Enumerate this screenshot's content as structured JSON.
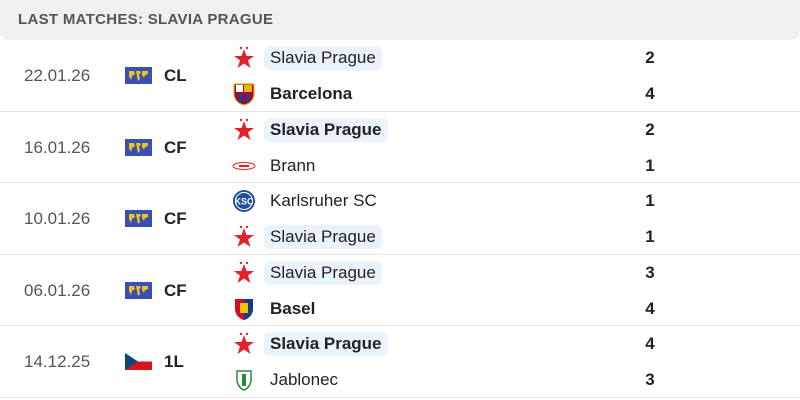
{
  "header": {
    "title": "LAST MATCHES: SLAVIA PRAGUE"
  },
  "colors": {
    "highlight": "#eaf2fc",
    "slavia_red": "#e4202a"
  },
  "matches": [
    {
      "date": "22.01.26",
      "competition": "CL",
      "comp_icon": "world-map-icon",
      "home": {
        "name": "Slavia Prague",
        "logo": "slavia-star",
        "highlight": true,
        "winner": false,
        "score": "2"
      },
      "away": {
        "name": "Barcelona",
        "logo": "barcelona",
        "highlight": false,
        "winner": true,
        "score": "4"
      }
    },
    {
      "date": "16.01.26",
      "competition": "CF",
      "comp_icon": "world-map-icon",
      "home": {
        "name": "Slavia Prague",
        "logo": "slavia-star",
        "highlight": true,
        "winner": true,
        "score": "2"
      },
      "away": {
        "name": "Brann",
        "logo": "brann",
        "highlight": false,
        "winner": false,
        "score": "1"
      }
    },
    {
      "date": "10.01.26",
      "competition": "CF",
      "comp_icon": "world-map-icon",
      "home": {
        "name": "Karlsruher SC",
        "logo": "ksc",
        "highlight": false,
        "winner": false,
        "score": "1"
      },
      "away": {
        "name": "Slavia Prague",
        "logo": "slavia-star",
        "highlight": true,
        "winner": false,
        "score": "1"
      }
    },
    {
      "date": "06.01.26",
      "competition": "CF",
      "comp_icon": "world-map-icon",
      "home": {
        "name": "Slavia Prague",
        "logo": "slavia-star",
        "highlight": true,
        "winner": false,
        "score": "3"
      },
      "away": {
        "name": "Basel",
        "logo": "basel",
        "highlight": false,
        "winner": true,
        "score": "4"
      }
    },
    {
      "date": "14.12.25",
      "competition": "1L",
      "comp_icon": "czech-flag-icon",
      "home": {
        "name": "Slavia Prague",
        "logo": "slavia-star",
        "highlight": true,
        "winner": true,
        "score": "4"
      },
      "away": {
        "name": "Jablonec",
        "logo": "jablonec",
        "highlight": false,
        "winner": false,
        "score": "3"
      }
    }
  ]
}
